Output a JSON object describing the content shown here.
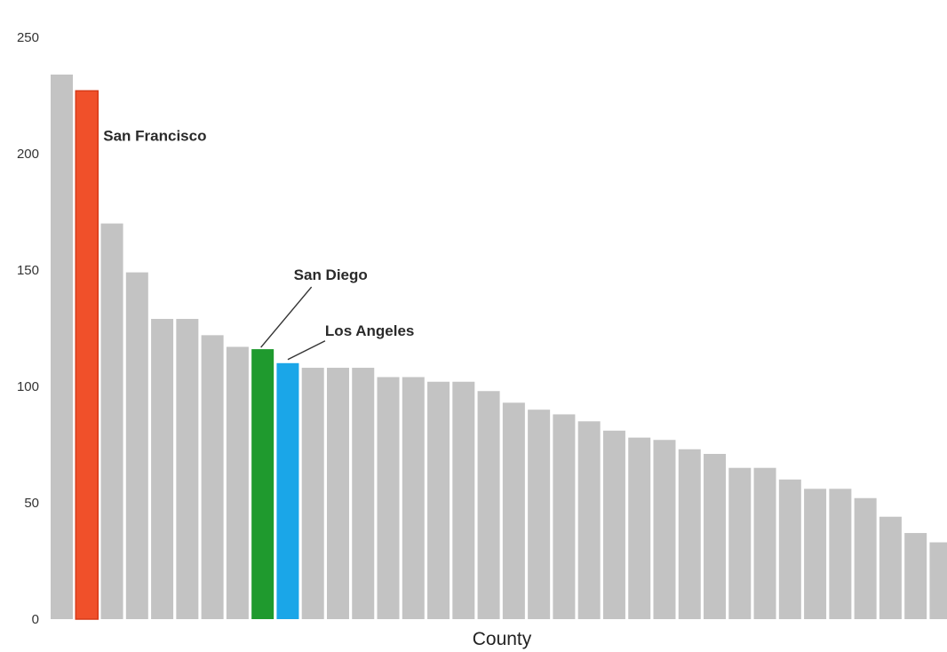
{
  "chart_data": {
    "type": "bar",
    "title": "",
    "xlabel": "County",
    "ylabel": "",
    "ylim": [
      0,
      250
    ],
    "yticks": [
      "0",
      "50",
      "100",
      "150",
      "200",
      "250"
    ],
    "grid": false,
    "legend": "none",
    "colors": {
      "default": "#c3c3c3",
      "san_francisco": "#f0502a",
      "san_diego": "#1f9a2e",
      "los_angeles": "#1aa6e8",
      "highlight_border": "#d63a18"
    },
    "series": [
      {
        "values": [
          234,
          227,
          170,
          149,
          129,
          129,
          122,
          117,
          116,
          110,
          108,
          108,
          108,
          104,
          104,
          102,
          102,
          98,
          93,
          90,
          88,
          85,
          81,
          78,
          77,
          73,
          71,
          65,
          65,
          60,
          56,
          56,
          52,
          44,
          37,
          33
        ]
      }
    ],
    "annotations": [
      {
        "label": "San Francisco",
        "bar_index": 1,
        "color_key": "san_francisco"
      },
      {
        "label": "San Diego",
        "bar_index": 8,
        "color_key": "san_diego"
      },
      {
        "label": "Los Angeles",
        "bar_index": 9,
        "color_key": "los_angeles"
      }
    ]
  }
}
